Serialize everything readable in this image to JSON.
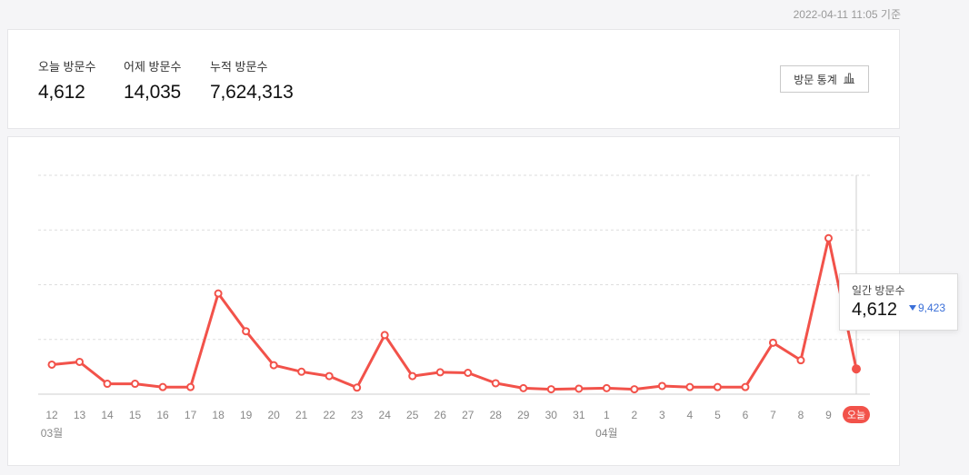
{
  "timestamp": "2022-04-11 11:05 기준",
  "summary": {
    "today_label": "오늘 방문수",
    "today_value": "4,612",
    "yesterday_label": "어제 방문수",
    "yesterday_value": "14,035",
    "total_label": "누적 방문수",
    "total_value": "7,624,313",
    "stats_button_label": "방문 통계",
    "stats_button_icon": "bar-chart-icon"
  },
  "tooltip": {
    "label": "일간 방문수",
    "value": "4,612",
    "delta_value": "9,423",
    "delta_direction": "down",
    "delta_color": "#3a6fd8"
  },
  "chart_data": {
    "type": "line",
    "x": [
      "12",
      "13",
      "14",
      "15",
      "16",
      "17",
      "18",
      "19",
      "20",
      "21",
      "22",
      "23",
      "24",
      "25",
      "26",
      "27",
      "28",
      "29",
      "30",
      "31",
      "1",
      "2",
      "3",
      "4",
      "5",
      "6",
      "7",
      "8",
      "9",
      "오늘"
    ],
    "month_labels": [
      {
        "index": 0,
        "label": "03월"
      },
      {
        "index": 20,
        "label": "04월"
      }
    ],
    "values": [
      5400,
      5900,
      1900,
      1900,
      1300,
      1300,
      18400,
      11500,
      5300,
      4100,
      3300,
      1200,
      10800,
      3300,
      4000,
      3900,
      2000,
      1100,
      900,
      1000,
      1100,
      900,
      1500,
      1300,
      1300,
      1300,
      9400,
      6200,
      28500,
      4612
    ],
    "highlight_index": 29,
    "ylim": [
      0,
      40000
    ],
    "grid_lines": 4,
    "grid": true,
    "line_color": "#f2524a",
    "today_badge_color": "#f2524a"
  }
}
